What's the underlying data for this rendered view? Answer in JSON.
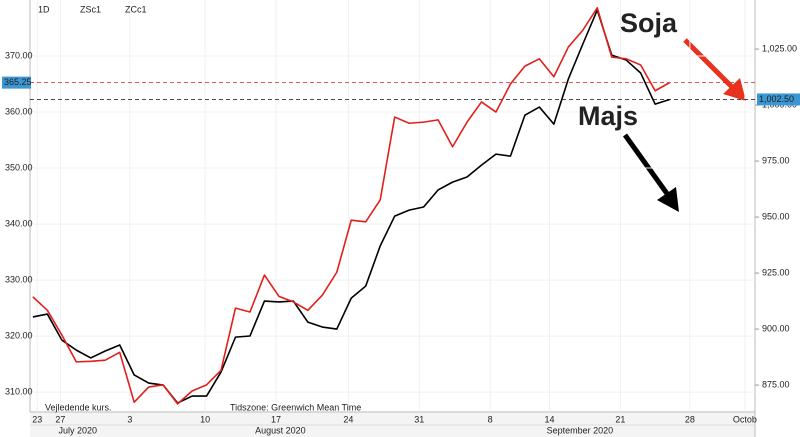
{
  "chart_data": {
    "type": "line",
    "interval": "1D",
    "x": [
      0,
      1,
      2,
      3,
      4,
      5,
      6,
      7,
      8,
      9,
      10,
      11,
      12,
      13,
      14,
      15,
      16,
      17,
      18,
      19,
      20,
      21,
      22,
      23,
      24,
      25,
      26,
      27,
      28,
      29,
      30,
      31,
      32,
      33,
      34,
      35,
      36,
      37,
      38,
      39,
      40,
      41,
      42,
      43,
      44
    ],
    "series": [
      {
        "name": "ZSc1",
        "color": "#000000",
        "axis": "y2",
        "values": [
          905.4,
          906.7,
          895.1,
          890.6,
          887.1,
          890.2,
          892.9,
          879.5,
          875.9,
          875.0,
          867.0,
          870.1,
          870.1,
          880.8,
          896.4,
          896.9,
          912.5,
          912.1,
          912.5,
          903.1,
          900.9,
          900.0,
          913.8,
          919.2,
          937.1,
          950.4,
          953.1,
          954.5,
          962.1,
          965.6,
          967.9,
          973.2,
          978.1,
          977.2,
          995.5,
          999.1,
          991.5,
          1011.6,
          1027.2,
          1042.4,
          1022.3,
          1020.1,
          1014.3,
          1000.4,
          1002.5
        ]
      },
      {
        "name": "ZCc1",
        "color": "#e0201b",
        "values": [
          327.0,
          324.6,
          320.2,
          315.4,
          315.5,
          315.7,
          317.1,
          308.2,
          310.9,
          311.3,
          307.9,
          310.2,
          311.3,
          313.9,
          325.0,
          324.3,
          330.9,
          327.1,
          326.1,
          324.6,
          327.3,
          331.4,
          340.7,
          340.4,
          344.3,
          359.1,
          358.0,
          358.2,
          358.6,
          353.8,
          358.2,
          361.8,
          360.0,
          365.0,
          368.2,
          369.5,
          366.3,
          371.6,
          374.6,
          378.6,
          369.8,
          369.5,
          368.4,
          363.8,
          365.25
        ]
      }
    ],
    "xlim": [
      -0.2,
      49.9
    ],
    "xticks": [
      {
        "value": 0.3,
        "label": "23"
      },
      {
        "value": 1.9,
        "label": "27"
      },
      {
        "value": 6.7,
        "label": "3"
      },
      {
        "value": 11.9,
        "label": "10"
      },
      {
        "value": 16.8,
        "label": "17"
      },
      {
        "value": 21.8,
        "label": "24"
      },
      {
        "value": 26.7,
        "label": "31"
      },
      {
        "value": 31.6,
        "label": "8"
      },
      {
        "value": 35.7,
        "label": "14"
      },
      {
        "value": 40.6,
        "label": "21"
      },
      {
        "value": 45.4,
        "label": "28"
      },
      {
        "value": 49.2,
        "label": "Octob"
      }
    ],
    "month_ticks": [
      {
        "value": 3.1,
        "label": "July 2020"
      },
      {
        "value": 17.1,
        "label": "August 2020"
      },
      {
        "value": 37.8,
        "label": "September 2020"
      }
    ],
    "ylim": [
      307.7,
      380
    ],
    "yticks": [
      {
        "value": 310,
        "label": "310.00"
      },
      {
        "value": 320,
        "label": "320.00"
      },
      {
        "value": 330,
        "label": "330.00"
      },
      {
        "value": 340,
        "label": "340.00"
      },
      {
        "value": 350,
        "label": "350.00"
      },
      {
        "value": 360,
        "label": "360.00"
      },
      {
        "value": 370,
        "label": "370.00"
      }
    ],
    "y2lim": [
      866.1,
      1046.9
    ],
    "y2ticks": [
      {
        "value": 875,
        "label": "875.00"
      },
      {
        "value": 900,
        "label": "900.00"
      },
      {
        "value": 925,
        "label": "925.00"
      },
      {
        "value": 950,
        "label": "950.00"
      },
      {
        "value": 975,
        "label": "975.00"
      },
      {
        "value": 1000,
        "label": "1,000.00"
      },
      {
        "value": 1025,
        "label": "1,025.00"
      }
    ],
    "price_markers": [
      {
        "value": 365.25,
        "label": "365.25",
        "axis": "y",
        "color": "#e0201b"
      },
      {
        "value": 1002.5,
        "label": "1,002.50",
        "axis": "y2",
        "color": "#333333"
      }
    ],
    "annotations": [
      {
        "text": "Soja",
        "color": "#e8321e"
      },
      {
        "text": "Majs",
        "color": "#000000"
      }
    ],
    "footer_notes": [
      "Vejledende kurs.",
      "Tidszone: Greenwich Mean Time"
    ]
  }
}
